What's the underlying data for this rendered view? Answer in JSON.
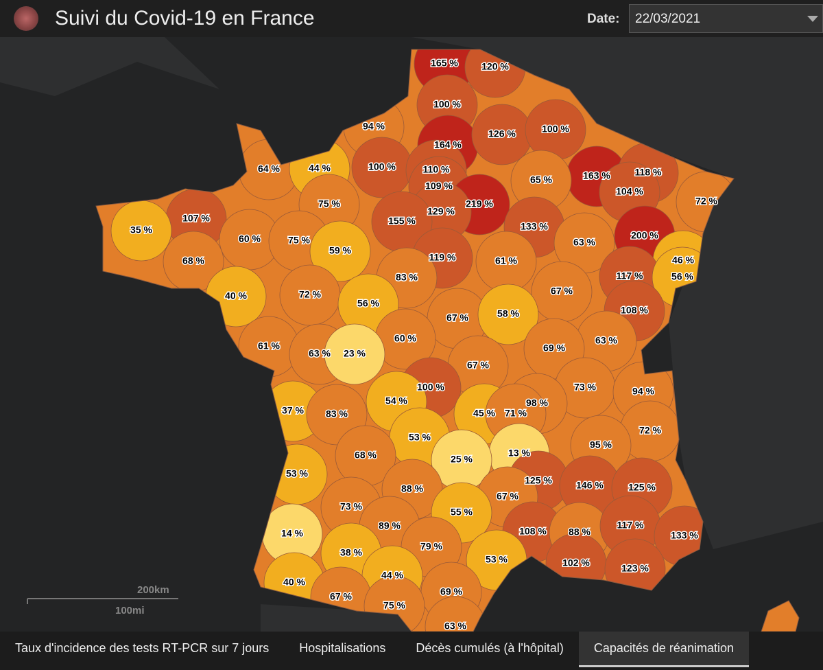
{
  "header": {
    "title": "Suivi du Covid-19 en France",
    "date_label": "Date:",
    "date_value": "22/03/2021"
  },
  "map": {
    "departments": [
      {
        "value": 165,
        "label": "165 %"
      },
      {
        "value": 120,
        "label": "120 %"
      },
      {
        "value": 100,
        "label": "100 %"
      },
      {
        "value": 94,
        "label": "94 %"
      },
      {
        "value": 164,
        "label": "164 %"
      },
      {
        "value": 126,
        "label": "126 %"
      },
      {
        "value": 100,
        "label": "100 %"
      },
      {
        "value": 64,
        "label": "64 %"
      },
      {
        "value": 44,
        "label": "44 %"
      },
      {
        "value": 100,
        "label": "100 %"
      },
      {
        "value": 110,
        "label": "110 %"
      },
      {
        "value": 163,
        "label": "163 %"
      },
      {
        "value": 118,
        "label": "118 %"
      },
      {
        "value": 65,
        "label": "65 %"
      },
      {
        "value": 109,
        "label": "109 %"
      },
      {
        "value": 104,
        "label": "104 %"
      },
      {
        "value": 219,
        "label": "219 %"
      },
      {
        "value": 75,
        "label": "75 %"
      },
      {
        "value": 72,
        "label": "72 %"
      },
      {
        "value": 129,
        "label": "129 %"
      },
      {
        "value": 107,
        "label": "107 %"
      },
      {
        "value": 155,
        "label": "155 %"
      },
      {
        "value": 133,
        "label": "133 %"
      },
      {
        "value": 35,
        "label": "35 %"
      },
      {
        "value": 200,
        "label": "200 %"
      },
      {
        "value": 60,
        "label": "60 %"
      },
      {
        "value": 75,
        "label": "75 %"
      },
      {
        "value": 63,
        "label": "63 %"
      },
      {
        "value": 59,
        "label": "59 %"
      },
      {
        "value": 68,
        "label": "68 %"
      },
      {
        "value": 119,
        "label": "119 %"
      },
      {
        "value": 61,
        "label": "61 %"
      },
      {
        "value": 46,
        "label": "46 %"
      },
      {
        "value": 117,
        "label": "117 %"
      },
      {
        "value": 56,
        "label": "56 %"
      },
      {
        "value": 83,
        "label": "83 %"
      },
      {
        "value": 40,
        "label": "40 %"
      },
      {
        "value": 72,
        "label": "72 %"
      },
      {
        "value": 56,
        "label": "56 %"
      },
      {
        "value": 67,
        "label": "67 %"
      },
      {
        "value": 108,
        "label": "108 %"
      },
      {
        "value": 67,
        "label": "67 %"
      },
      {
        "value": 58,
        "label": "58 %"
      },
      {
        "value": 60,
        "label": "60 %"
      },
      {
        "value": 63,
        "label": "63 %"
      },
      {
        "value": 61,
        "label": "61 %"
      },
      {
        "value": 63,
        "label": "63 %"
      },
      {
        "value": 23,
        "label": "23 %"
      },
      {
        "value": 69,
        "label": "69 %"
      },
      {
        "value": 67,
        "label": "67 %"
      },
      {
        "value": 100,
        "label": "100 %"
      },
      {
        "value": 73,
        "label": "73 %"
      },
      {
        "value": 94,
        "label": "94 %"
      },
      {
        "value": 54,
        "label": "54 %"
      },
      {
        "value": 98,
        "label": "98 %"
      },
      {
        "value": 37,
        "label": "37 %"
      },
      {
        "value": 83,
        "label": "83 %"
      },
      {
        "value": 45,
        "label": "45 %"
      },
      {
        "value": 71,
        "label": "71 %"
      },
      {
        "value": 72,
        "label": "72 %"
      },
      {
        "value": 53,
        "label": "53 %"
      },
      {
        "value": 95,
        "label": "95 %"
      },
      {
        "value": 68,
        "label": "68 %"
      },
      {
        "value": 13,
        "label": "13 %"
      },
      {
        "value": 25,
        "label": "25 %"
      },
      {
        "value": 53,
        "label": "53 %"
      },
      {
        "value": 125,
        "label": "125 %"
      },
      {
        "value": 146,
        "label": "146 %"
      },
      {
        "value": 125,
        "label": "125 %"
      },
      {
        "value": 88,
        "label": "88 %"
      },
      {
        "value": 67,
        "label": "67 %"
      },
      {
        "value": 73,
        "label": "73 %"
      },
      {
        "value": 55,
        "label": "55 %"
      },
      {
        "value": 89,
        "label": "89 %"
      },
      {
        "value": 108,
        "label": "108 %"
      },
      {
        "value": 88,
        "label": "88 %"
      },
      {
        "value": 117,
        "label": "117 %"
      },
      {
        "value": 133,
        "label": "133 %"
      },
      {
        "value": 14,
        "label": "14 %"
      },
      {
        "value": 38,
        "label": "38 %"
      },
      {
        "value": 79,
        "label": "79 %"
      },
      {
        "value": 53,
        "label": "53 %"
      },
      {
        "value": 102,
        "label": "102 %"
      },
      {
        "value": 44,
        "label": "44 %"
      },
      {
        "value": 123,
        "label": "123 %"
      },
      {
        "value": 40,
        "label": "40 %"
      },
      {
        "value": 69,
        "label": "69 %"
      },
      {
        "value": 67,
        "label": "67 %"
      },
      {
        "value": 75,
        "label": "75 %"
      },
      {
        "value": 63,
        "label": "63 %"
      }
    ],
    "scale": {
      "km": "200km",
      "mi": "100mi"
    }
  },
  "tabs": [
    "Taux d'incidence des tests RT-PCR sur 7 jours",
    "Hospitalisations",
    "Décès cumulés (à l'hôpital)",
    "Capacités de réanimation"
  ]
}
